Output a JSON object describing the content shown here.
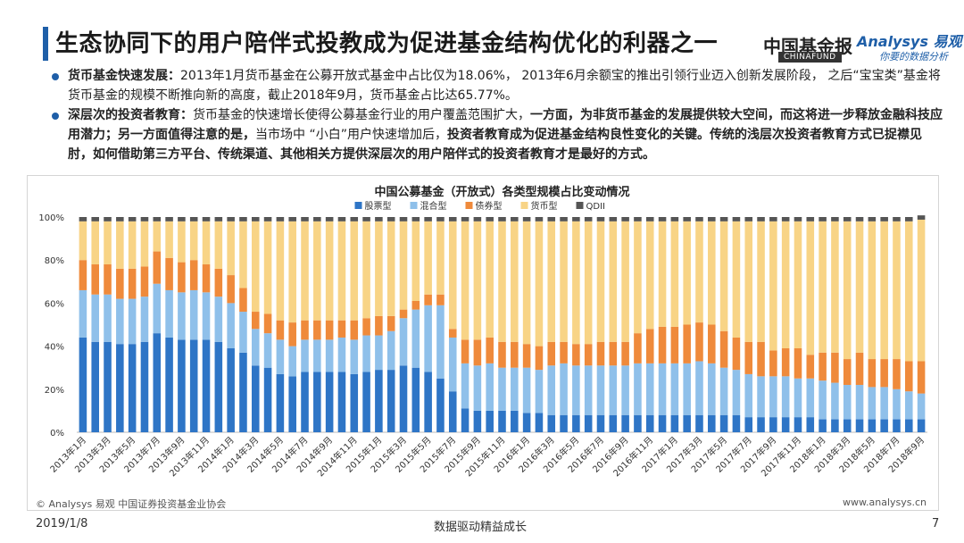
{
  "header": {
    "title": "生态协同下的用户陪伴式投教成为促进基金结构优化的利器之一",
    "logo_cf": "中国基金报",
    "logo_cf_sub": "CHINAFUND",
    "logo_an": "Analysys 易观",
    "logo_an_sub": "你要的数据分析"
  },
  "bullets": [
    {
      "head": "货币基金快速发展：",
      "text": "2013年1月货币基金在公募开放式基金中占比仅为18.06%， 2013年6月余额宝的推出引领行业迈入创新发展阶段， 之后“宝宝类”基金将货币基金的规模不断推向新的高度，截止2018年9月，货币基金占比达65.77%。"
    },
    {
      "head": "深层次的投资者教育：",
      "text1": "货币基金的快速增长使得公募基金行业的用户覆盖范围扩大，",
      "bold1": "一方面，为非货币基金的发展提供较大空间，而这将进一步释放金融科技应用潜力；另一方面值得注意的是，",
      "text2": "当市场中 “小白”用户快速增加后，",
      "bold2": "投资者教育成为促进基金结构良性变化的关键。传统的浅层次投资者教育方式已捉襟见肘，如何借助第三方平台、传统渠道、其他相关方提供深层次的用户陪伴式的投资者教育才是最好的方式。"
    }
  ],
  "footer": {
    "source": "© Analysys 易观 中国证券投资基金业协会",
    "url": "www.analysys.cn",
    "date": "2019/1/8",
    "slogan": "数据驱动精益成长",
    "page": "7"
  },
  "chart_data": {
    "type": "bar",
    "stacked": true,
    "title": "中国公募基金（开放式）各类型规模占比变动情况",
    "ylim": [
      0,
      100
    ],
    "yticks": [
      "0%",
      "20%",
      "40%",
      "60%",
      "80%",
      "100%"
    ],
    "legend_position": "top",
    "x": [
      "2013年1月",
      "2013年2月",
      "2013年3月",
      "2013年4月",
      "2013年5月",
      "2013年6月",
      "2013年7月",
      "2013年8月",
      "2013年9月",
      "2013年10月",
      "2013年11月",
      "2013年12月",
      "2014年1月",
      "2014年2月",
      "2014年3月",
      "2014年4月",
      "2014年5月",
      "2014年6月",
      "2014年7月",
      "2014年8月",
      "2014年9月",
      "2014年10月",
      "2014年11月",
      "2014年12月",
      "2015年1月",
      "2015年2月",
      "2015年3月",
      "2015年4月",
      "2015年5月",
      "2015年6月",
      "2015年7月",
      "2015年8月",
      "2015年9月",
      "2015年10月",
      "2015年11月",
      "2015年12月",
      "2016年1月",
      "2016年2月",
      "2016年3月",
      "2016年4月",
      "2016年5月",
      "2016年6月",
      "2016年7月",
      "2016年8月",
      "2016年9月",
      "2016年10月",
      "2016年11月",
      "2016年12月",
      "2017年1月",
      "2017年2月",
      "2017年3月",
      "2017年4月",
      "2017年5月",
      "2017年6月",
      "2017年7月",
      "2017年8月",
      "2017年9月",
      "2017年10月",
      "2017年11月",
      "2017年12月",
      "2018年1月",
      "2018年2月",
      "2018年3月",
      "2018年4月",
      "2018年5月",
      "2018年6月",
      "2018年7月",
      "2018年8月",
      "2018年9月"
    ],
    "series": [
      {
        "name": "股票型",
        "color": "#2e75c6",
        "values": [
          44,
          42,
          42,
          41,
          41,
          42,
          46,
          44,
          43,
          43,
          43,
          42,
          39,
          37,
          31,
          30,
          27,
          26,
          28,
          28,
          28,
          28,
          27,
          28,
          29,
          29,
          31,
          30,
          28,
          25,
          19,
          11,
          10,
          10,
          10,
          10,
          9,
          9,
          8,
          8,
          8,
          8,
          8,
          8,
          8,
          8,
          8,
          8,
          8,
          8,
          8,
          8,
          8,
          8,
          7,
          7,
          7,
          7,
          7,
          7,
          6,
          6,
          6,
          6,
          6,
          6,
          6,
          6,
          6
        ]
      },
      {
        "name": "混合型",
        "color": "#8fc0ea",
        "values": [
          22,
          22,
          22,
          21,
          21,
          21,
          23,
          22,
          22,
          23,
          22,
          21,
          21,
          19,
          17,
          16,
          16,
          14,
          15,
          15,
          15,
          16,
          16,
          17,
          16,
          18,
          22,
          27,
          31,
          34,
          25,
          21,
          21,
          22,
          20,
          20,
          21,
          20,
          23,
          24,
          23,
          23,
          23,
          23,
          23,
          24,
          24,
          24,
          24,
          24,
          25,
          24,
          22,
          21,
          20,
          19,
          19,
          19,
          18,
          18,
          18,
          17,
          16,
          16,
          15,
          15,
          14,
          13,
          12
        ]
      },
      {
        "name": "债券型",
        "color": "#ef8a3b",
        "values": [
          14,
          14,
          14,
          14,
          14,
          14,
          15,
          15,
          14,
          14,
          13,
          13,
          13,
          11,
          8,
          9,
          9,
          11,
          9,
          9,
          9,
          8,
          9,
          8,
          9,
          7,
          4,
          4,
          5,
          5,
          4,
          11,
          12,
          12,
          12,
          12,
          11,
          11,
          11,
          10,
          10,
          10,
          11,
          11,
          11,
          14,
          16,
          17,
          17,
          18,
          18,
          18,
          17,
          15,
          15,
          16,
          12,
          13,
          14,
          11,
          13,
          14,
          12,
          15,
          13,
          13,
          14,
          14,
          15
        ]
      },
      {
        "name": "货币型",
        "color": "#f8d486",
        "values": [
          18,
          20,
          20,
          22,
          22,
          21,
          14,
          17,
          19,
          18,
          20,
          22,
          25,
          31,
          42,
          43,
          46,
          47,
          46,
          46,
          46,
          46,
          46,
          45,
          44,
          44,
          41,
          37,
          34,
          34,
          50,
          55,
          55,
          54,
          56,
          56,
          57,
          58,
          56,
          56,
          57,
          57,
          56,
          56,
          56,
          52,
          50,
          49,
          49,
          48,
          47,
          48,
          51,
          54,
          56,
          56,
          60,
          59,
          59,
          62,
          61,
          61,
          64,
          61,
          64,
          64,
          64,
          65,
          65.77
        ]
      },
      {
        "name": "QDII",
        "color": "#555555",
        "values": [
          2,
          2,
          2,
          2,
          2,
          2,
          2,
          2,
          2,
          2,
          2,
          2,
          2,
          2,
          2,
          2,
          2,
          2,
          2,
          2,
          2,
          2,
          2,
          2,
          2,
          2,
          2,
          2,
          2,
          2,
          2,
          2,
          2,
          2,
          2,
          2,
          2,
          2,
          2,
          2,
          2,
          2,
          2,
          2,
          2,
          2,
          2,
          2,
          2,
          2,
          2,
          2,
          2,
          2,
          2,
          2,
          2,
          2,
          2,
          2,
          2,
          2,
          2,
          2,
          2,
          2,
          2,
          2,
          2
        ]
      }
    ]
  }
}
